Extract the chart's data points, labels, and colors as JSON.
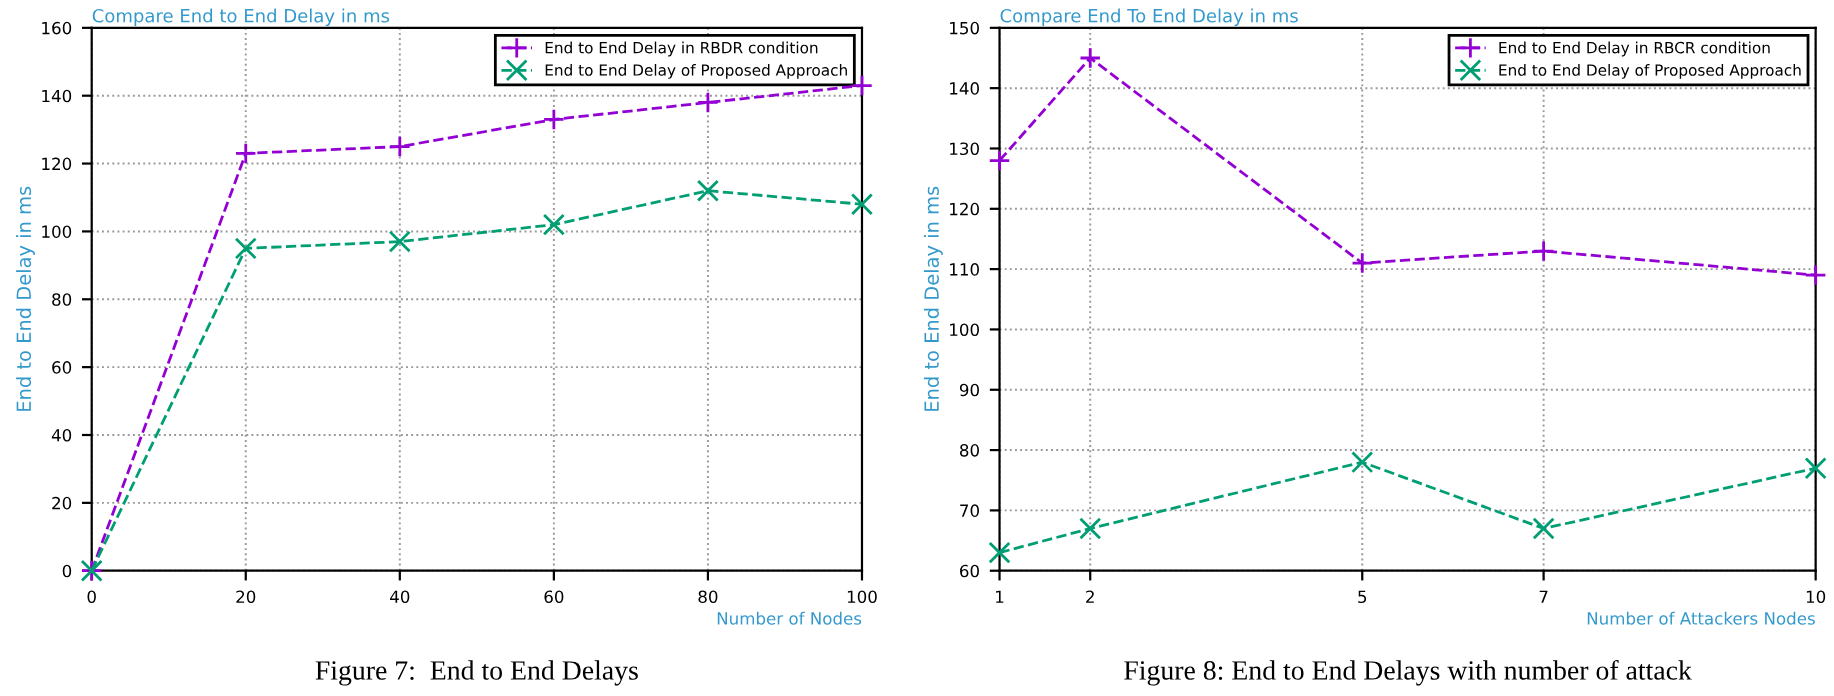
{
  "chart_data": [
    {
      "type": "line",
      "title": "Compare End to End Delay in ms",
      "xlabel": "Number of Nodes",
      "ylabel": "End to End Delay in ms",
      "x": [
        0,
        20,
        40,
        60,
        80,
        100
      ],
      "series": [
        {
          "name": "End to End Delay in RBDR condition",
          "color": "#9400d3",
          "values": [
            0,
            123,
            125,
            133,
            138,
            143
          ],
          "marker": "plus"
        },
        {
          "name": "End to End Delay of Proposed Approach",
          "color": "#009e73",
          "values": [
            0,
            95,
            97,
            102,
            112,
            108
          ],
          "marker": "cross"
        }
      ],
      "xlim": [
        0,
        100
      ],
      "xticks": [
        0,
        20,
        40,
        60,
        80,
        100
      ],
      "ylim": [
        0,
        160
      ],
      "yticks": [
        0,
        20,
        40,
        60,
        80,
        100,
        120,
        140,
        160
      ],
      "grid": true,
      "legend": "top right",
      "line_style": "dashed",
      "annotations": [
        "Figure 7:  End to End Delays"
      ]
    },
    {
      "type": "line",
      "title": "Compare End To End Delay in ms",
      "xlabel": "Number of Attackers Nodes",
      "ylabel": "End to End Delay in ms",
      "x": [
        1,
        2,
        5,
        7,
        10
      ],
      "series": [
        {
          "name": "End to End Delay in RBCR condition",
          "color": "#9400d3",
          "values": [
            128,
            145,
            111,
            113,
            109
          ],
          "marker": "plus"
        },
        {
          "name": "End to End Delay of Proposed Approach",
          "color": "#009e73",
          "values": [
            63,
            67,
            78,
            67,
            77
          ],
          "marker": "cross"
        }
      ],
      "xlim": [
        1,
        10
      ],
      "xticks": [
        1,
        2,
        5,
        7,
        10
      ],
      "ylim": [
        60,
        150
      ],
      "yticks": [
        60,
        70,
        80,
        90,
        100,
        110,
        120,
        130,
        140,
        150
      ],
      "grid": true,
      "legend": "top right",
      "line_style": "dashed",
      "annotations": [
        "Figure 8: End to End Delays with number of attack"
      ]
    }
  ]
}
